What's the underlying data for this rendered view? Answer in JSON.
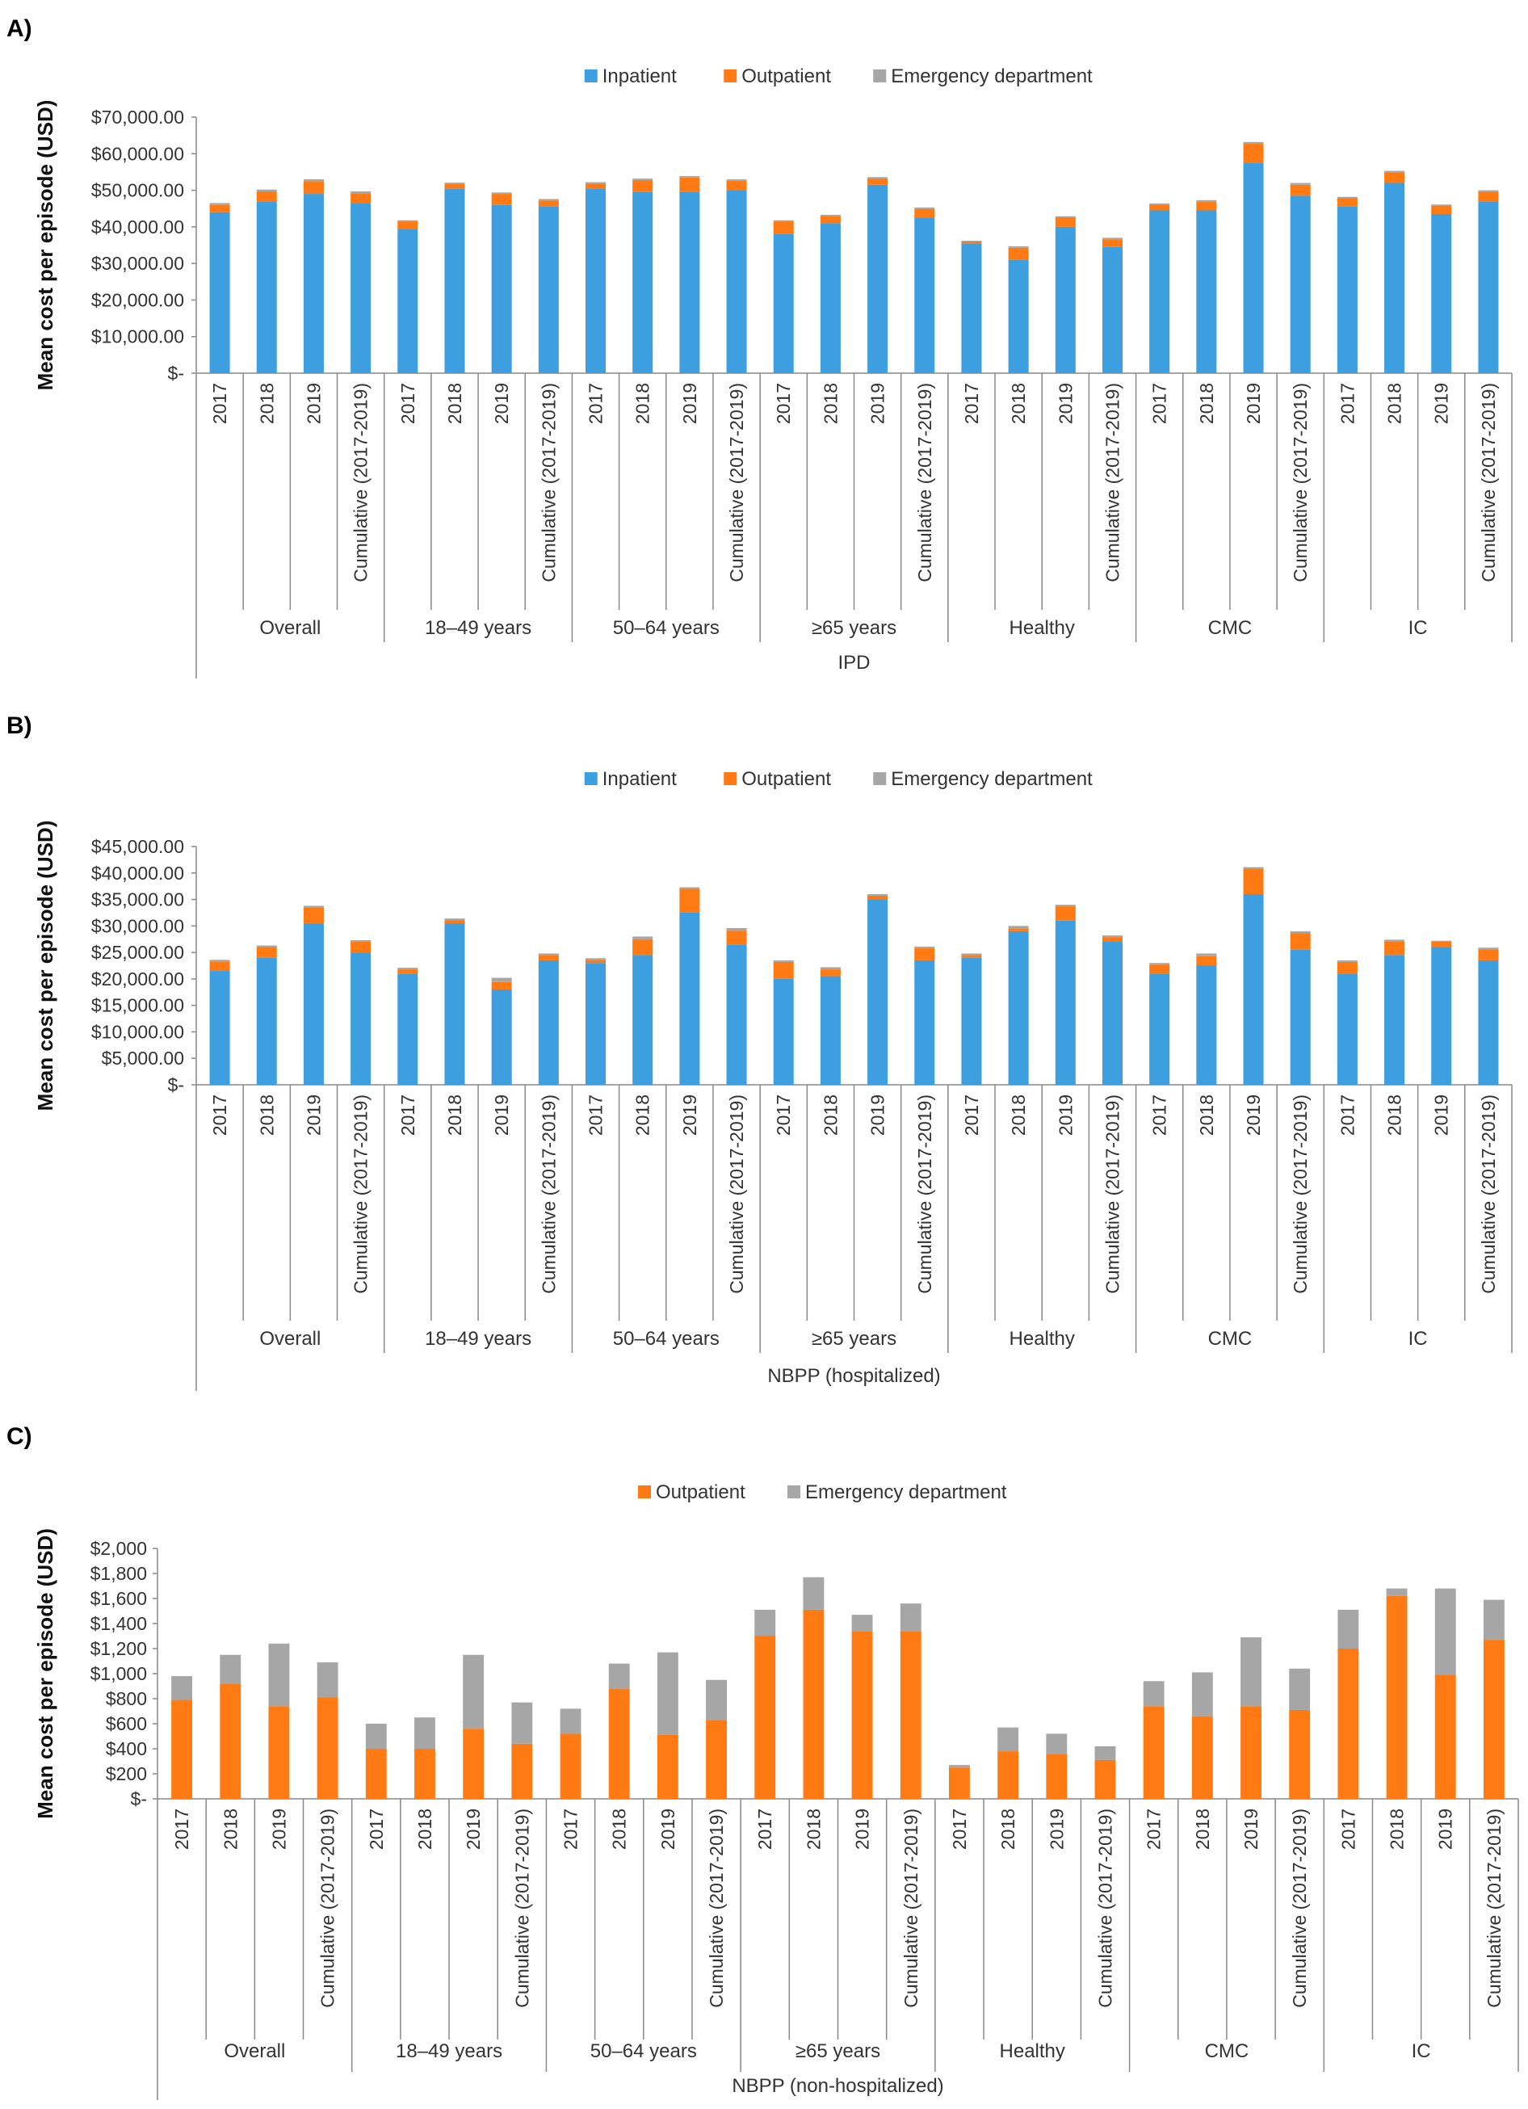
{
  "colors": {
    "inpatient": "#3d9ee0",
    "outpatient": "#ff7a12",
    "emergency": "#a6a6a6"
  },
  "categories": [
    "2017",
    "2018",
    "2019",
    "Cumulative (2017-2019)"
  ],
  "groups": [
    "Overall",
    "18–49 years",
    "50–64 years",
    "≥65 years",
    "Healthy",
    "CMC",
    "IC"
  ],
  "chart_data": [
    {
      "panel_label": "A)",
      "type": "bar",
      "stacked": true,
      "title": "IPD",
      "ylabel": "Mean cost per episode (USD)",
      "ylim": [
        0,
        70000
      ],
      "yticks": [
        0,
        10000,
        20000,
        30000,
        40000,
        50000,
        60000,
        70000
      ],
      "ytick_labels": [
        "$-",
        "$10,000.00",
        "$20,000.00",
        "$30,000.00",
        "$40,000.00",
        "$50,000.00",
        "$60,000.00",
        "$70,000.00"
      ],
      "legend": [
        "Inpatient",
        "Outpatient",
        "Emergency department"
      ],
      "series": [
        {
          "name": "Inpatient",
          "values": [
            44000,
            47000,
            49000,
            46500,
            39500,
            50500,
            46000,
            45500,
            50500,
            49500,
            49500,
            50000,
            38000,
            41000,
            51500,
            42500,
            35500,
            31000,
            40000,
            34500,
            44500,
            44500,
            57500,
            48500,
            45500,
            52000,
            43500,
            47000
          ]
        },
        {
          "name": "Outpatient",
          "values": [
            2000,
            2700,
            3500,
            2700,
            2000,
            1200,
            3000,
            1700,
            1300,
            3300,
            4000,
            2600,
            3500,
            2000,
            1700,
            2400,
            500,
            3300,
            2600,
            2100,
            1600,
            2300,
            5200,
            3000,
            2400,
            2900,
            2300,
            2600
          ]
        },
        {
          "name": "Emergency department",
          "values": [
            500,
            500,
            500,
            500,
            300,
            400,
            400,
            400,
            400,
            400,
            400,
            400,
            300,
            300,
            400,
            400,
            200,
            400,
            300,
            400,
            300,
            500,
            500,
            500,
            300,
            400,
            300,
            400
          ]
        }
      ]
    },
    {
      "panel_label": "B)",
      "type": "bar",
      "stacked": true,
      "title": "NBPP (hospitalized)",
      "ylabel": "Mean cost per episode (USD)",
      "ylim": [
        0,
        45000
      ],
      "yticks": [
        0,
        5000,
        10000,
        15000,
        20000,
        25000,
        30000,
        35000,
        40000,
        45000
      ],
      "ytick_labels": [
        "$-",
        "$5,000.00",
        "$10,000.00",
        "$15,000.00",
        "$20,000.00",
        "$25,000.00",
        "$30,000.00",
        "$35,000.00",
        "$40,000.00",
        "$45,000.00"
      ],
      "legend": [
        "Inpatient",
        "Outpatient",
        "Emergency department"
      ],
      "series": [
        {
          "name": "Inpatient",
          "values": [
            21500,
            24000,
            30500,
            25000,
            21000,
            30500,
            18000,
            23500,
            23000,
            24500,
            32500,
            26500,
            20000,
            20500,
            35000,
            23500,
            24000,
            29000,
            31000,
            27000,
            21000,
            22500,
            36000,
            25500,
            21000,
            24500,
            26000,
            23500
          ]
        },
        {
          "name": "Outpatient",
          "values": [
            1800,
            2000,
            3000,
            2000,
            800,
            600,
            1400,
            1000,
            600,
            3000,
            4500,
            2600,
            3200,
            1300,
            700,
            2300,
            500,
            500,
            2700,
            900,
            1700,
            1800,
            4800,
            3100,
            2200,
            2600,
            1000,
            2100
          ]
        },
        {
          "name": "Emergency department",
          "values": [
            300,
            300,
            300,
            300,
            300,
            300,
            800,
            300,
            300,
            500,
            300,
            500,
            300,
            400,
            300,
            300,
            300,
            500,
            300,
            300,
            300,
            500,
            300,
            400,
            300,
            300,
            200,
            300
          ]
        }
      ]
    },
    {
      "panel_label": "C)",
      "type": "bar",
      "stacked": true,
      "title": "NBPP (non-hospitalized)",
      "ylabel": "Mean cost per episode (USD)",
      "ylim": [
        0,
        2000
      ],
      "yticks": [
        0,
        200,
        400,
        600,
        800,
        1000,
        1200,
        1400,
        1600,
        1800,
        2000
      ],
      "ytick_labels": [
        "$-",
        "$200",
        "$400",
        "$600",
        "$800",
        "$1,000",
        "$1,200",
        "$1,400",
        "$1,600",
        "$1,800",
        "$2,000"
      ],
      "legend": [
        "Outpatient",
        "Emergency department"
      ],
      "series": [
        {
          "name": "Outpatient",
          "values": [
            790,
            920,
            740,
            810,
            400,
            400,
            560,
            440,
            520,
            880,
            510,
            630,
            1300,
            1510,
            1340,
            1340,
            250,
            380,
            360,
            310,
            740,
            660,
            740,
            710,
            1200,
            1620,
            990,
            1270
          ]
        },
        {
          "name": "Emergency department",
          "values": [
            190,
            230,
            500,
            280,
            200,
            250,
            590,
            330,
            200,
            200,
            660,
            320,
            210,
            260,
            130,
            220,
            20,
            190,
            160,
            110,
            200,
            350,
            550,
            330,
            310,
            60,
            690,
            320
          ]
        }
      ]
    }
  ]
}
